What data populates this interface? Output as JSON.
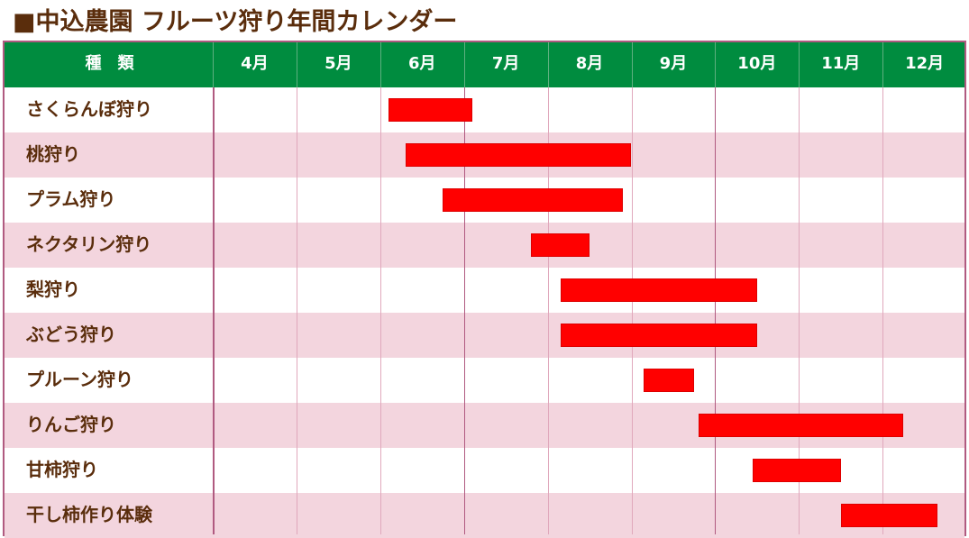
{
  "title": "■中込農園 フルーツ狩り年間カレンダー",
  "colors": {
    "header_bg": "#008c3f",
    "header_text": "#ffffff",
    "label_text": "#5a2d0c",
    "row_alt": "#f3d5de",
    "bar": "#ff0000",
    "border": "#b05a80"
  },
  "chart_data": {
    "type": "gantt",
    "title": "■中込農園 フルーツ狩り年間カレンダー",
    "category_header": "種　類",
    "months": [
      "4月",
      "5月",
      "6月",
      "7月",
      "8月",
      "9月",
      "10月",
      "11月",
      "12月"
    ],
    "xlim": [
      4,
      13
    ],
    "tasks": [
      {
        "name": "さくらんぼ狩り",
        "start": 6.1,
        "end": 7.1
      },
      {
        "name": "桃狩り",
        "start": 6.3,
        "end": 9.0
      },
      {
        "name": "プラム狩り",
        "start": 6.75,
        "end": 8.9
      },
      {
        "name": "ネクタリン狩り",
        "start": 7.8,
        "end": 8.5
      },
      {
        "name": "梨狩り",
        "start": 8.15,
        "end": 10.5
      },
      {
        "name": "ぶどう狩り",
        "start": 8.15,
        "end": 10.5
      },
      {
        "name": "プルーン狩り",
        "start": 9.15,
        "end": 9.75
      },
      {
        "name": "りんご狩り",
        "start": 9.8,
        "end": 12.25
      },
      {
        "name": "甘柿狩り",
        "start": 10.45,
        "end": 11.5
      },
      {
        "name": "干し柿作り体験",
        "start": 11.5,
        "end": 12.65
      }
    ]
  }
}
